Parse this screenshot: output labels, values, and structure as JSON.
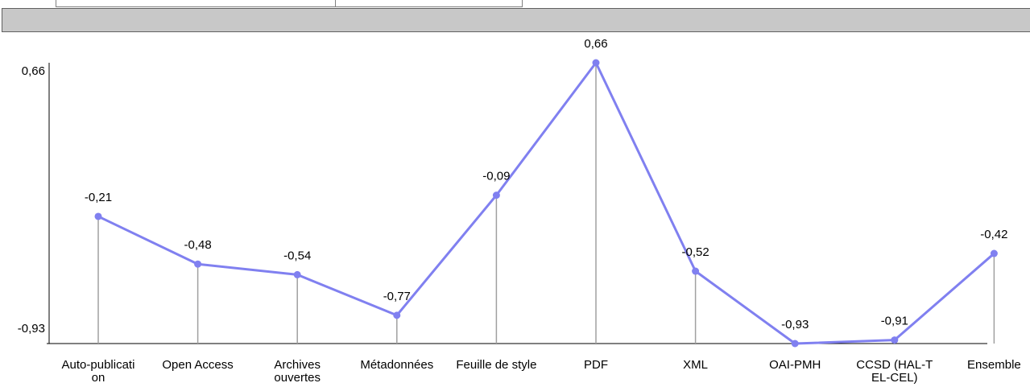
{
  "chart_data": {
    "type": "line",
    "categories": [
      [
        "Auto-publicati",
        "on"
      ],
      [
        "Open Access"
      ],
      [
        "Archives",
        "ouvertes"
      ],
      [
        "Métadonnées"
      ],
      [
        "Feuille de style"
      ],
      [
        "PDF"
      ],
      [
        "XML"
      ],
      [
        "OAI-PMH"
      ],
      [
        "CCSD (HAL-T",
        "EL-CEL)"
      ],
      [
        "Ensemble"
      ]
    ],
    "series": [
      {
        "values": [
          -0.21,
          -0.48,
          -0.54,
          -0.77,
          -0.09,
          0.66,
          -0.52,
          -0.93,
          -0.91,
          -0.42
        ],
        "value_labels": [
          "-0,21",
          "-0,48",
          "-0,54",
          "-0,77",
          "-0,09",
          "0,66",
          "-0,52",
          "-0,93",
          "-0,91",
          "-0,42"
        ],
        "color": "#8080f0"
      }
    ],
    "y_ticks": [
      {
        "value": 0.66,
        "label": "0,66"
      },
      {
        "value": -0.93,
        "label": "-0,93"
      }
    ],
    "ylim": [
      -0.93,
      0.66
    ],
    "drop_lines": true,
    "drop_line_color": "#a0a0a0",
    "grid": false
  },
  "colors": {
    "header_bar": "#c8c8c8",
    "line": "#8080f0"
  }
}
